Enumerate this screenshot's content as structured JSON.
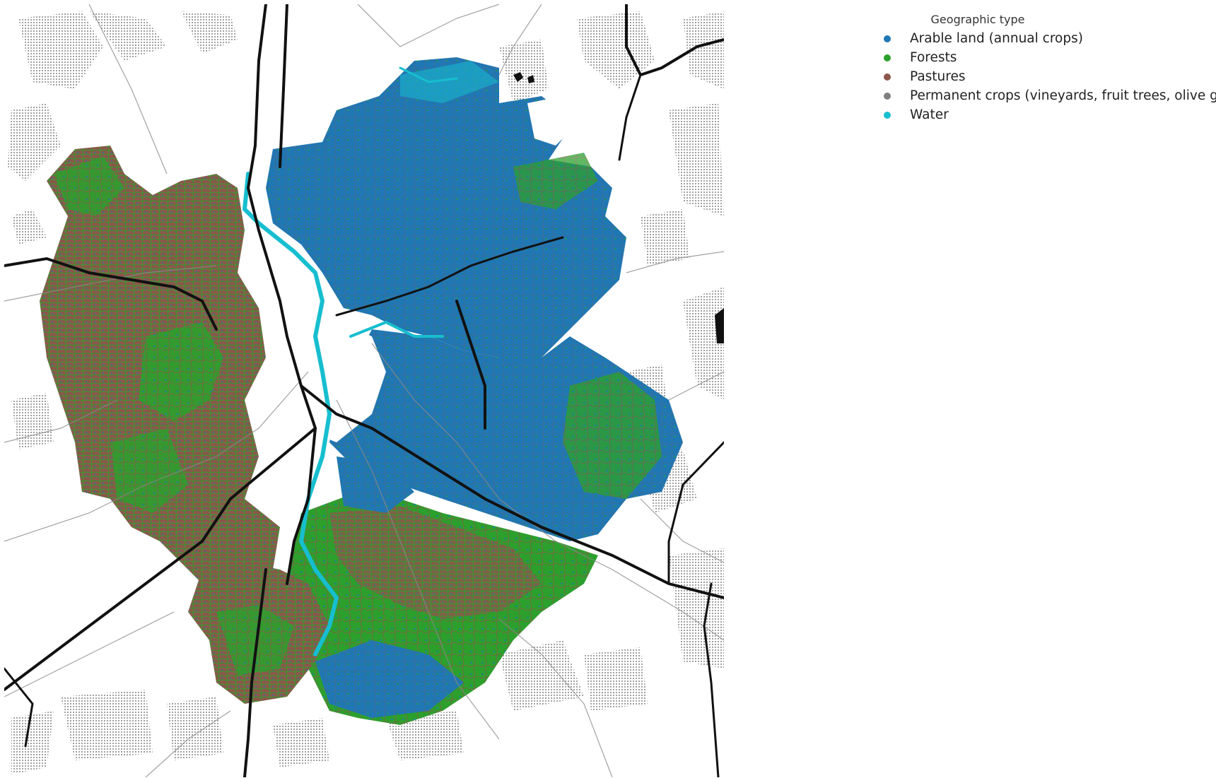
{
  "legend": {
    "title": "Geographic type",
    "items": [
      {
        "label": "Arable land (annual crops)",
        "color": "#1f77b4"
      },
      {
        "label": "Forests",
        "color": "#2ca02c"
      },
      {
        "label": "Pastures",
        "color": "#8c564b"
      },
      {
        "label": "Permanent crops (vineyards, fruit trees, olive groves)",
        "color": "#7f7f7f"
      },
      {
        "label": "Water",
        "color": "#17becf"
      }
    ]
  },
  "map": {
    "basemap": "grey road network with black highways and dotted built-up/forest hatching",
    "highway_color": "#111111",
    "road_color": "#8a8a8a"
  }
}
